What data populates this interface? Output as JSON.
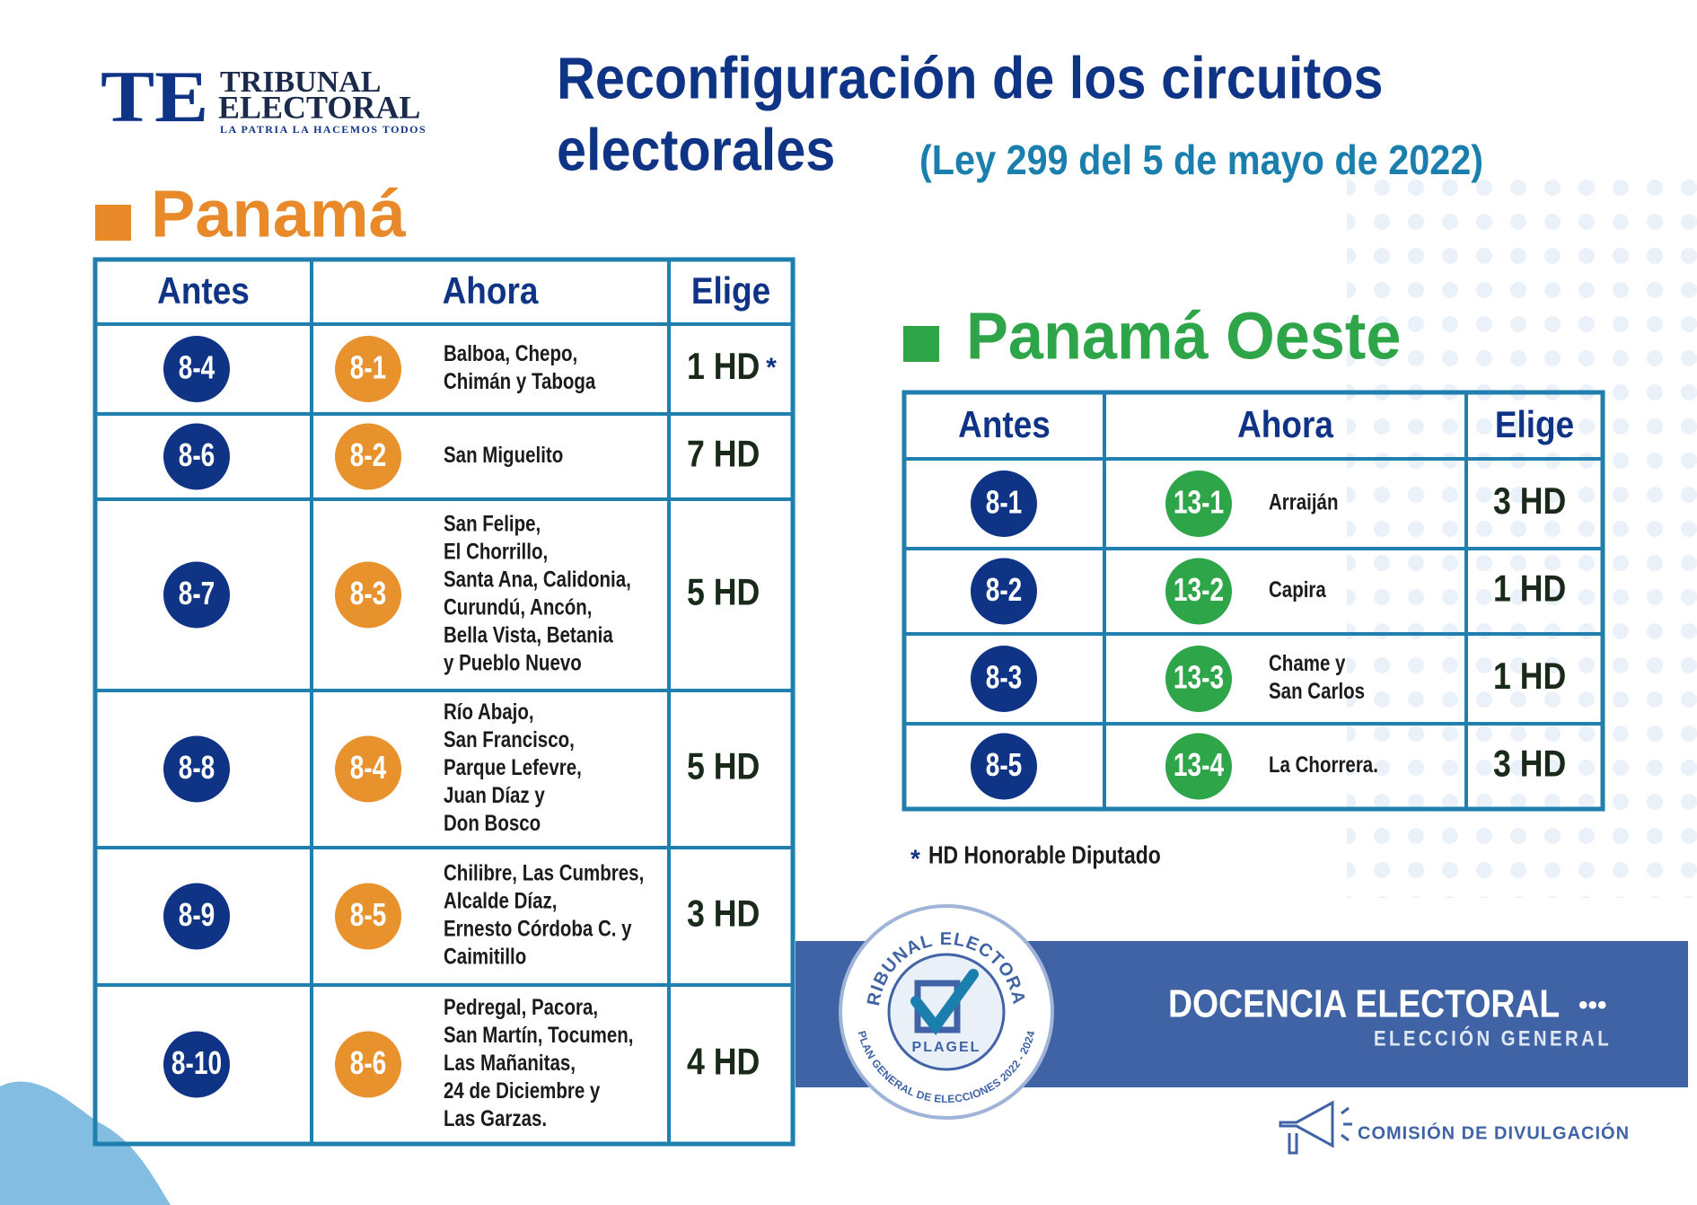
{
  "header": {
    "logo_mark": "TE",
    "logo_name_1": "TRIBUNAL",
    "logo_name_2": "ELECTORAL",
    "logo_tagline": "LA PATRIA LA HACEMOS TODOS",
    "title_1": "Reconfiguración de los circuitos",
    "title_2": "electorales",
    "law": "(Ley 299 del 5 de mayo de 2022)"
  },
  "panama": {
    "title": "Panamá",
    "columns": [
      "Antes",
      "Ahora",
      "Elige"
    ],
    "rows": [
      {
        "antes": "8-4",
        "ahora": "8-1",
        "places": [
          "Balboa, Chepo,",
          "Chimán y Taboga"
        ],
        "elige": "1 HD",
        "note": "*"
      },
      {
        "antes": "8-6",
        "ahora": "8-2",
        "places": [
          "San Miguelito"
        ],
        "elige": "7 HD"
      },
      {
        "antes": "8-7",
        "ahora": "8-3",
        "places": [
          "San Felipe,",
          "El Chorrillo,",
          "Santa Ana, Calidonia,",
          "Curundú, Ancón,",
          "Bella Vista, Betania",
          "y Pueblo Nuevo"
        ],
        "elige": "5 HD"
      },
      {
        "antes": "8-8",
        "ahora": "8-4",
        "places": [
          "Río Abajo,",
          "San Francisco,",
          "Parque Lefevre,",
          "Juan Díaz y",
          "Don Bosco"
        ],
        "elige": "5 HD"
      },
      {
        "antes": "8-9",
        "ahora": "8-5",
        "places": [
          "Chilibre, Las Cumbres,",
          "Alcalde Díaz,",
          "Ernesto Córdoba C. y",
          "Caimitillo"
        ],
        "elige": "3 HD"
      },
      {
        "antes": "8-10",
        "ahora": "8-6",
        "places": [
          "Pedregal, Pacora,",
          "San Martín, Tocumen,",
          "Las Mañanitas,",
          "24 de Diciembre y",
          "Las Garzas."
        ],
        "elige": "4 HD"
      }
    ]
  },
  "oeste": {
    "title": "Panamá Oeste",
    "columns": [
      "Antes",
      "Ahora",
      "Elige"
    ],
    "rows": [
      {
        "antes": "8-1",
        "ahora": "13-1",
        "places": [
          "Arraiján"
        ],
        "elige": "3 HD"
      },
      {
        "antes": "8-2",
        "ahora": "13-2",
        "places": [
          "Capira"
        ],
        "elige": "1 HD"
      },
      {
        "antes": "8-3",
        "ahora": "13-3",
        "places": [
          "Chame y",
          "San Carlos"
        ],
        "elige": "1 HD"
      },
      {
        "antes": "8-5",
        "ahora": "13-4",
        "places": [
          "La Chorrera."
        ],
        "elige": "3 HD"
      }
    ]
  },
  "footnote": {
    "mark": "*",
    "text": "HD Honorable Diputado"
  },
  "footer": {
    "seal_top": "TRIBUNAL ELECTORAL",
    "seal_center": "PLAGEL",
    "seal_bottom": "PLAN GENERAL DE ELECCIONES 2022 - 2024",
    "banner_title": "DOCENCIA ELECTORAL",
    "banner_dots": "•••",
    "banner_subtitle": "ELECCIÓN GENERAL",
    "commission": "COMISIÓN DE DIVULGACIÓN"
  }
}
